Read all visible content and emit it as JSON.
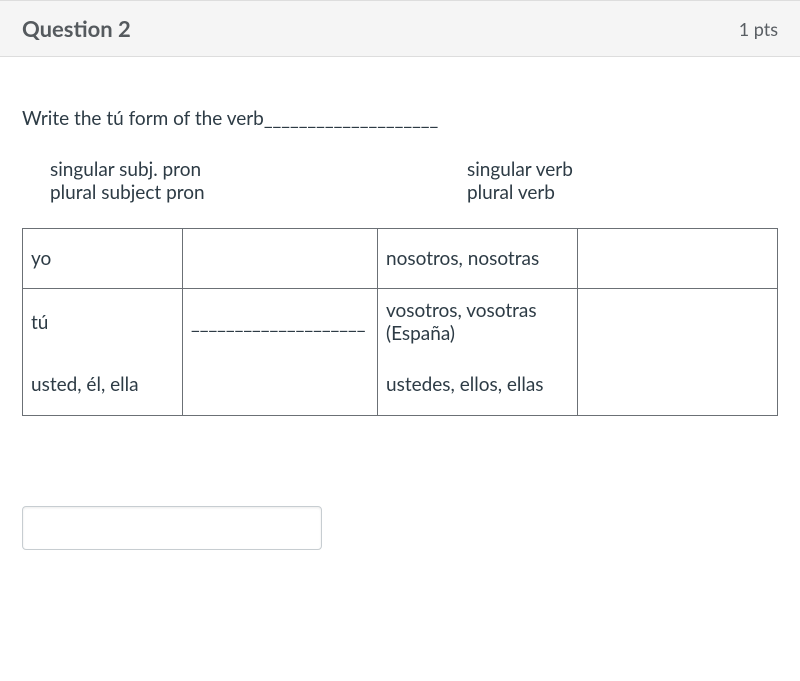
{
  "header": {
    "title": "Question 2",
    "points": "1 pts"
  },
  "prompt": "Write the tú form of the verb____________________",
  "column_headers": {
    "left_line1": "singular subj. pron",
    "left_line2": "plural subject pron",
    "right_line1": "singular verb",
    "right_line2": "plural verb"
  },
  "table": {
    "rows": [
      {
        "pron": "yo",
        "verb": "",
        "plural_pron": "nosotros, nosotras",
        "plural_verb": ""
      },
      {
        "pron": "tú",
        "verb": "____________________",
        "plural_pron": "vosotros, vosotras (España)",
        "plural_verb": ""
      },
      {
        "pron": "usted, él, ella",
        "verb": "",
        "plural_pron": "ustedes, ellos, ellas",
        "plural_verb": ""
      }
    ]
  },
  "input": {
    "value": "",
    "placeholder": ""
  },
  "colors": {
    "header_bg": "#f5f5f5",
    "text": "#2d3b45",
    "border": "#6b7075"
  }
}
